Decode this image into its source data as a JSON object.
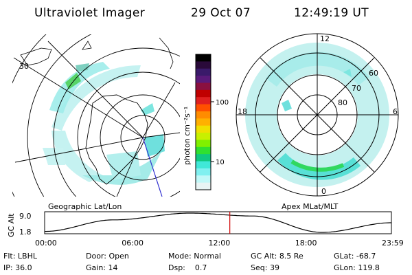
{
  "header": {
    "instrument": "Ultraviolet Imager",
    "date": "29 Oct 07",
    "time": "12:49:19 UT"
  },
  "left_panel": {
    "caption": "Geographic Lat/Lon",
    "lat_label": "30"
  },
  "colorbar": {
    "unit_label": "photon cm⁻²s⁻¹",
    "ticks": [
      "100",
      "10"
    ],
    "colors": [
      "#000000",
      "#2a0a3a",
      "#3a1a6a",
      "#5a1a7a",
      "#8a1040",
      "#c00000",
      "#e02020",
      "#ff5000",
      "#ff8c00",
      "#ffb000",
      "#f0e000",
      "#c8f000",
      "#80f000",
      "#30e030",
      "#10c880",
      "#40e8d8",
      "#80f0f0",
      "#c0f8f8",
      "#e8f4f4"
    ]
  },
  "right_panel": {
    "caption": "Apex MLat/MLT",
    "mlt_labels": {
      "top": "12",
      "left": "18",
      "right": "6",
      "bottom": "0"
    },
    "lat_labels": [
      "60",
      "70",
      "80"
    ]
  },
  "altitude_plot": {
    "ylabel": "GC Alt",
    "ticks": [
      "9.0",
      "1.8"
    ],
    "time_ticks": [
      "00:00",
      "06:00",
      "12:00",
      "18:00",
      "23:59"
    ],
    "current_time_fraction": 0.534,
    "colors": {
      "curve": "#000000",
      "marker": "#d00000"
    }
  },
  "info": {
    "row1": [
      {
        "label": "Flt:",
        "value": "LBHL"
      },
      {
        "label": "Door:",
        "value": "Open"
      },
      {
        "label": "Mode:",
        "value": "Normal"
      },
      {
        "label": "GC Alt:",
        "value": "8.5 Re"
      },
      {
        "label": "GLat:",
        "value": "-68.7"
      }
    ],
    "row2": [
      {
        "label": "IP:",
        "value": "36.0"
      },
      {
        "label": "Gain:",
        "value": "14"
      },
      {
        "label": "Dsp:",
        "value": "0.7"
      },
      {
        "label": "Seq:",
        "value": "39"
      },
      {
        "label": "GLon:",
        "value": "119.8"
      }
    ]
  }
}
